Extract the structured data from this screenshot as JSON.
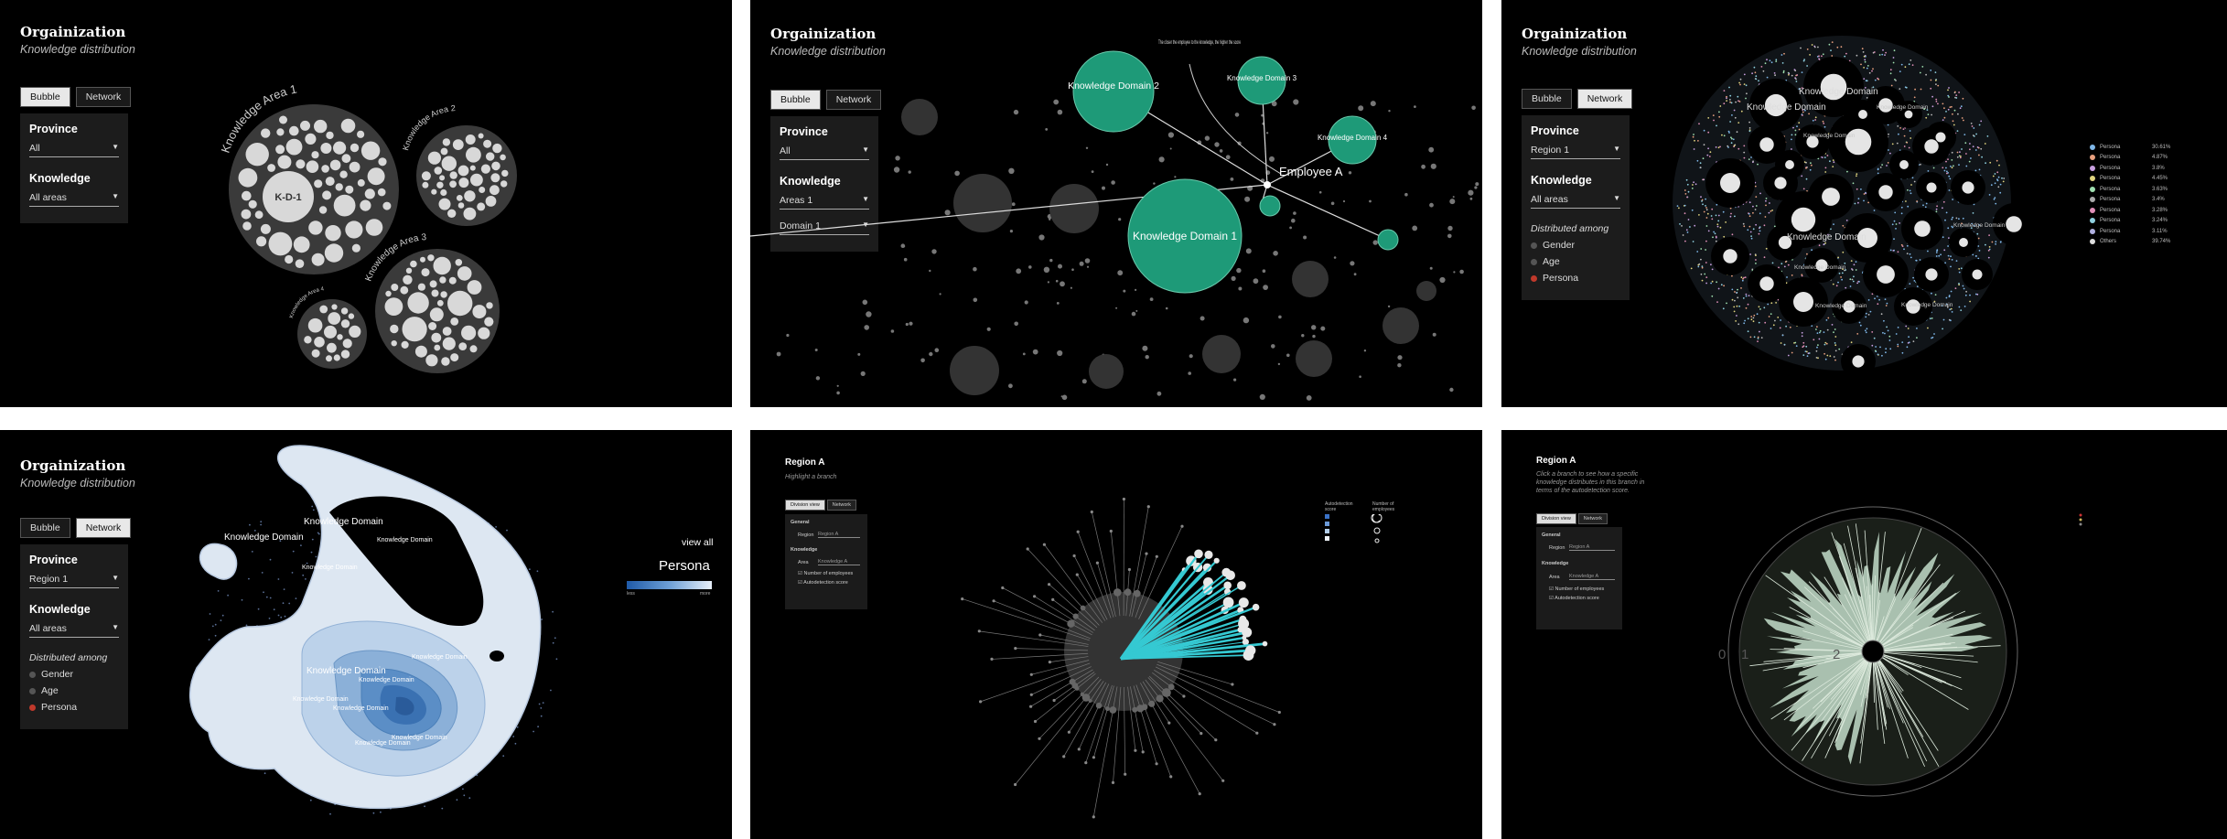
{
  "common": {
    "title": "Orgainization",
    "subtitle": "Knowledge distribution",
    "bubble_label": "Bubble",
    "network_label": "Network",
    "province_label": "Province",
    "knowledge_label": "Knowledge",
    "distributed_label": "Distributed among",
    "gender_label": "Gender",
    "age_label": "Age",
    "persona_label": "Persona"
  },
  "panel1": {
    "province_value": "All",
    "knowledge_value": "All areas",
    "area1": "Knowledge Area 1",
    "area2": "Knowledge Area 2",
    "area3": "Knowledge Area 3",
    "area4": "Knowledge Area 4",
    "kd1": "K-D-1"
  },
  "panel2": {
    "province_value": "All",
    "knowledge_value1": "Areas 1",
    "knowledge_value2": "Domain 1",
    "domain1": "Knowledge Domain 1",
    "domain2": "Knowledge Domain 2",
    "domain3": "Knowledge Domain 3",
    "domain4": "Knowledge Domain 4",
    "employee": "Employee A",
    "annotation": "The closer the employee to the knowledge, the higher the score"
  },
  "panel3": {
    "province_value": "Region 1",
    "knowledge_value": "All areas",
    "domain_label": "Knowledge Domain",
    "legend": [
      {
        "name": "Persona",
        "value": "30.61%",
        "color": "#7fb7e8"
      },
      {
        "name": "Persona",
        "value": "4.87%",
        "color": "#e8a07f"
      },
      {
        "name": "Persona",
        "value": "3.8%",
        "color": "#c89fe0"
      },
      {
        "name": "Persona",
        "value": "4.45%",
        "color": "#e0d47f"
      },
      {
        "name": "Persona",
        "value": "3.63%",
        "color": "#9fe0b0"
      },
      {
        "name": "Persona",
        "value": "3.4%",
        "color": "#aaaaaa"
      },
      {
        "name": "Persona",
        "value": "3.28%",
        "color": "#e08fb8"
      },
      {
        "name": "Persona",
        "value": "3.24%",
        "color": "#8fd0e0"
      },
      {
        "name": "Persona",
        "value": "3.11%",
        "color": "#b0b0e0"
      },
      {
        "name": "Others",
        "value": "39.74%",
        "color": "#dddddd"
      }
    ]
  },
  "panel4": {
    "province_value": "Region 1",
    "knowledge_value": "All areas",
    "domain_label": "Knowledge Domain",
    "view_all": "view all",
    "persona_heading": "Persona",
    "scale_low": "less",
    "scale_high": "more"
  },
  "panel5": {
    "title": "Region A",
    "subtitle": "Highlight a branch",
    "btn1": "Division view",
    "btn2": "Network",
    "general": "General",
    "region_label": "Region",
    "region_value": "Region A",
    "knowledge": "Knowledge",
    "area_label": "Area",
    "area_value": "Knowledge A",
    "check1": "Number of employees",
    "check2": "Autodetection score",
    "legend_score_title": "Autodetection score",
    "legend_employees_title": "Number of employees"
  },
  "panel6": {
    "title": "Region A",
    "subtitle": "Click a branch to see how a specific knowledge distributes in this branch in terms of the autodetection score.",
    "btn1": "Division view",
    "btn2": "Network",
    "general": "General",
    "region_label": "Region",
    "region_value": "Region A",
    "knowledge": "Knowledge",
    "area_label": "Area",
    "area_value": "Knowledge A",
    "check1": "Number of employees",
    "check2": "Autodetection score",
    "axis0": "0",
    "axis1": "1",
    "axis2": "2"
  }
}
